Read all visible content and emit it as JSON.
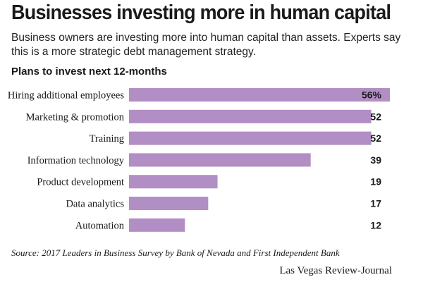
{
  "header": {
    "title": "Businesses investing more in human capital",
    "subtitle": "Business owners are investing more into human capital than assets. Experts say this is a more strategic debt management strategy."
  },
  "chart_data": {
    "type": "bar",
    "orientation": "horizontal",
    "title": "Plans to invest next 12-months",
    "categories": [
      "Hiring additional employees",
      "Marketing & promotion",
      "Training",
      "Information technology",
      "Product development",
      "Data analytics",
      "Automation"
    ],
    "values": [
      56,
      52,
      52,
      39,
      19,
      17,
      12
    ],
    "value_labels": [
      "56%",
      "52",
      "52",
      "39",
      "19",
      "17",
      "12"
    ],
    "xlim": [
      0,
      56
    ],
    "grid": false,
    "bar_color": "#b18ec4"
  },
  "footer": {
    "source": "Source: 2017 Leaders in Business Survey by Bank of Nevada and First Independent Bank",
    "credit": "Las Vegas Review-Journal"
  }
}
